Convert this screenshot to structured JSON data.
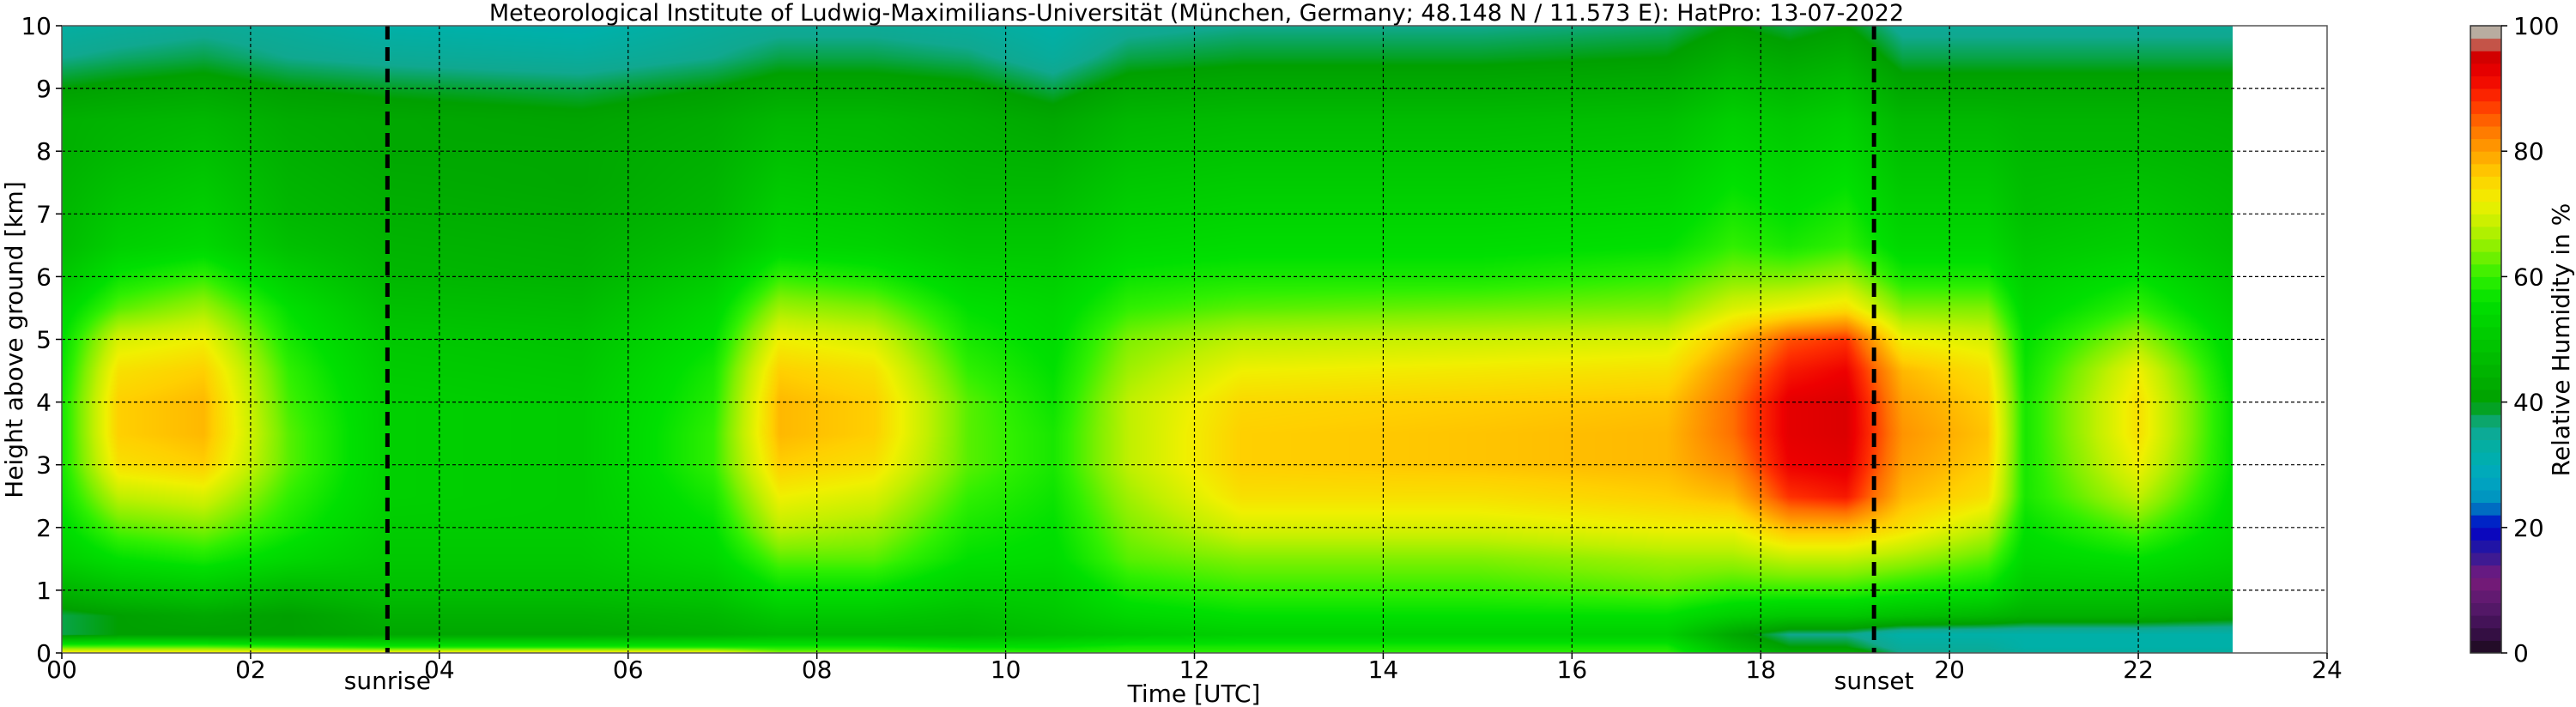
{
  "chart_data": {
    "type": "heatmap",
    "title": "Meteorological Institute of Ludwig-Maximilians-Universität (München, Germany; 48.148 N / 11.573 E):    HatPro: 13-07-2022",
    "xlabel": "Time [UTC]",
    "ylabel": "Height above ground [km]",
    "xlim": [
      0,
      24
    ],
    "ylim": [
      0,
      10
    ],
    "x_ticks": [
      "00",
      "02",
      "04",
      "06",
      "08",
      "10",
      "12",
      "14",
      "16",
      "18",
      "20",
      "22",
      "24"
    ],
    "y_ticks": [
      "0",
      "1",
      "2",
      "3",
      "4",
      "5",
      "6",
      "7",
      "8",
      "9",
      "10"
    ],
    "grid": true,
    "data_end_hour": 23.0,
    "annotations": [
      {
        "label": "sunrise",
        "x": 3.45
      },
      {
        "label": "sunset",
        "x": 19.2
      }
    ],
    "colorbar": {
      "label": "Relative Humidity in %",
      "ticks": [
        "0",
        "20",
        "40",
        "60",
        "80",
        "100"
      ],
      "range": [
        0,
        100
      ],
      "color_stops": [
        {
          "v": 0,
          "color": "#1a0a1a"
        },
        {
          "v": 4,
          "color": "#3c1050"
        },
        {
          "v": 8,
          "color": "#5a1a6e"
        },
        {
          "v": 12,
          "color": "#7a1a7a"
        },
        {
          "v": 16,
          "color": "#2a1a9a"
        },
        {
          "v": 20,
          "color": "#0000c8"
        },
        {
          "v": 24,
          "color": "#0090c0"
        },
        {
          "v": 28,
          "color": "#00a8c0"
        },
        {
          "v": 32,
          "color": "#00b0a8"
        },
        {
          "v": 36,
          "color": "#10a890"
        },
        {
          "v": 40,
          "color": "#00a000"
        },
        {
          "v": 44,
          "color": "#00b000"
        },
        {
          "v": 48,
          "color": "#00c000"
        },
        {
          "v": 52,
          "color": "#00d000"
        },
        {
          "v": 56,
          "color": "#00e000"
        },
        {
          "v": 60,
          "color": "#30f000"
        },
        {
          "v": 64,
          "color": "#80f000"
        },
        {
          "v": 68,
          "color": "#c0f000"
        },
        {
          "v": 72,
          "color": "#f0f000"
        },
        {
          "v": 76,
          "color": "#ffd000"
        },
        {
          "v": 80,
          "color": "#ffa000"
        },
        {
          "v": 84,
          "color": "#ff7000"
        },
        {
          "v": 88,
          "color": "#ff3000"
        },
        {
          "v": 92,
          "color": "#ee0000"
        },
        {
          "v": 96,
          "color": "#c80000"
        },
        {
          "v": 98,
          "color": "#c0a890"
        },
        {
          "v": 100,
          "color": "#b0b0b0"
        }
      ]
    },
    "rh_profile_heights_km": [
      0,
      0.1,
      0.3,
      0.6,
      1,
      1.5,
      2,
      2.5,
      3,
      3.5,
      4,
      4.5,
      5,
      5.5,
      6,
      6.5,
      7,
      7.5,
      8,
      8.5,
      9,
      9.5,
      10
    ],
    "rh_profiles": [
      {
        "time": 0.0,
        "rh": [
          75,
          62,
          38,
          38,
          45,
          52,
          55,
          57,
          58,
          58,
          58,
          57,
          56,
          54,
          50,
          47,
          46,
          45,
          44,
          44,
          40,
          36,
          33
        ]
      },
      {
        "time": 0.6,
        "rh": [
          75,
          62,
          40,
          40,
          48,
          56,
          62,
          68,
          74,
          76,
          76,
          74,
          70,
          62,
          57,
          52,
          50,
          48,
          46,
          45,
          41,
          37,
          34
        ]
      },
      {
        "time": 1.5,
        "rh": [
          75,
          62,
          40,
          42,
          50,
          58,
          64,
          70,
          76,
          78,
          78,
          76,
          72,
          66,
          60,
          54,
          52,
          50,
          48,
          46,
          42,
          38,
          35
        ]
      },
      {
        "time": 2.4,
        "rh": [
          75,
          60,
          40,
          40,
          46,
          54,
          58,
          60,
          62,
          62,
          61,
          60,
          58,
          56,
          52,
          48,
          46,
          45,
          44,
          43,
          40,
          36,
          34
        ]
      },
      {
        "time": 3.5,
        "rh": [
          75,
          58,
          42,
          44,
          48,
          50,
          51,
          52,
          52,
          52,
          52,
          51,
          50,
          48,
          46,
          45,
          44,
          43,
          42,
          42,
          39,
          35,
          32
        ]
      },
      {
        "time": 5.5,
        "rh": [
          76,
          58,
          42,
          44,
          48,
          50,
          51,
          51,
          51,
          51,
          51,
          50,
          49,
          47,
          45,
          44,
          43,
          42,
          42,
          41,
          38,
          34,
          31
        ]
      },
      {
        "time": 6.9,
        "rh": [
          75,
          58,
          44,
          46,
          50,
          54,
          56,
          58,
          60,
          60,
          59,
          58,
          56,
          54,
          51,
          48,
          46,
          45,
          44,
          43,
          40,
          36,
          34
        ]
      },
      {
        "time": 7.6,
        "rh": [
          65,
          58,
          46,
          50,
          56,
          62,
          68,
          72,
          76,
          78,
          78,
          76,
          72,
          66,
          60,
          54,
          52,
          50,
          48,
          46,
          42,
          38,
          35
        ]
      },
      {
        "time": 8.6,
        "rh": [
          65,
          58,
          46,
          50,
          56,
          62,
          66,
          70,
          74,
          76,
          76,
          74,
          70,
          64,
          58,
          53,
          51,
          49,
          47,
          46,
          42,
          38,
          35
        ]
      },
      {
        "time": 9.6,
        "rh": [
          62,
          56,
          46,
          48,
          52,
          56,
          58,
          60,
          62,
          62,
          62,
          60,
          58,
          56,
          53,
          50,
          48,
          46,
          45,
          44,
          41,
          37,
          34
        ]
      },
      {
        "time": 10.5,
        "rh": [
          60,
          56,
          48,
          50,
          52,
          55,
          56,
          57,
          58,
          58,
          57,
          56,
          55,
          54,
          52,
          50,
          48,
          46,
          44,
          42,
          38,
          34,
          32
        ]
      },
      {
        "time": 11.3,
        "rh": [
          60,
          58,
          50,
          54,
          58,
          62,
          64,
          66,
          68,
          68,
          68,
          66,
          64,
          60,
          57,
          54,
          52,
          50,
          48,
          46,
          42,
          38,
          35
        ]
      },
      {
        "time": 12.5,
        "rh": [
          60,
          58,
          52,
          56,
          60,
          64,
          70,
          74,
          76,
          76,
          75,
          72,
          68,
          62,
          58,
          55,
          53,
          51,
          49,
          47,
          43,
          39,
          36
        ]
      },
      {
        "time": 15.0,
        "rh": [
          60,
          58,
          52,
          56,
          60,
          64,
          70,
          74,
          77,
          77,
          76,
          73,
          69,
          63,
          58,
          55,
          53,
          51,
          49,
          47,
          43,
          39,
          36
        ]
      },
      {
        "time": 17.0,
        "rh": [
          60,
          58,
          52,
          56,
          62,
          66,
          72,
          76,
          78,
          78,
          77,
          74,
          70,
          64,
          60,
          56,
          54,
          52,
          50,
          48,
          44,
          40,
          37
        ]
      },
      {
        "time": 17.7,
        "rh": [
          50,
          46,
          42,
          52,
          60,
          66,
          72,
          78,
          82,
          84,
          84,
          82,
          78,
          70,
          64,
          60,
          58,
          56,
          54,
          52,
          48,
          44,
          40
        ]
      },
      {
        "time": 18.3,
        "rh": [
          44,
          40,
          36,
          50,
          60,
          68,
          78,
          88,
          92,
          93,
          93,
          90,
          86,
          72,
          64,
          58,
          56,
          54,
          52,
          50,
          46,
          42,
          38
        ]
      },
      {
        "time": 18.9,
        "rh": [
          44,
          40,
          36,
          50,
          60,
          68,
          78,
          90,
          93,
          94,
          94,
          92,
          88,
          74,
          66,
          60,
          58,
          56,
          54,
          52,
          48,
          44,
          40
        ]
      },
      {
        "time": 19.5,
        "rh": [
          36,
          34,
          32,
          48,
          58,
          66,
          74,
          78,
          80,
          81,
          80,
          78,
          72,
          64,
          58,
          54,
          52,
          50,
          48,
          46,
          42,
          38,
          35
        ]
      },
      {
        "time": 20.4,
        "rh": [
          36,
          34,
          32,
          46,
          56,
          62,
          68,
          74,
          76,
          77,
          76,
          74,
          70,
          64,
          58,
          54,
          52,
          50,
          48,
          46,
          42,
          38,
          35
        ]
      },
      {
        "time": 20.8,
        "rh": [
          34,
          32,
          32,
          44,
          50,
          54,
          56,
          58,
          58,
          58,
          58,
          57,
          56,
          54,
          52,
          50,
          48,
          47,
          46,
          45,
          42,
          38,
          35
        ]
      },
      {
        "time": 22.0,
        "rh": [
          34,
          32,
          32,
          44,
          50,
          56,
          62,
          68,
          72,
          74,
          74,
          72,
          66,
          60,
          56,
          52,
          50,
          48,
          46,
          45,
          42,
          38,
          35
        ]
      },
      {
        "time": 23.0,
        "rh": [
          34,
          32,
          32,
          42,
          48,
          52,
          54,
          55,
          56,
          56,
          56,
          55,
          54,
          52,
          50,
          48,
          47,
          46,
          45,
          44,
          42,
          38,
          35
        ]
      }
    ]
  }
}
